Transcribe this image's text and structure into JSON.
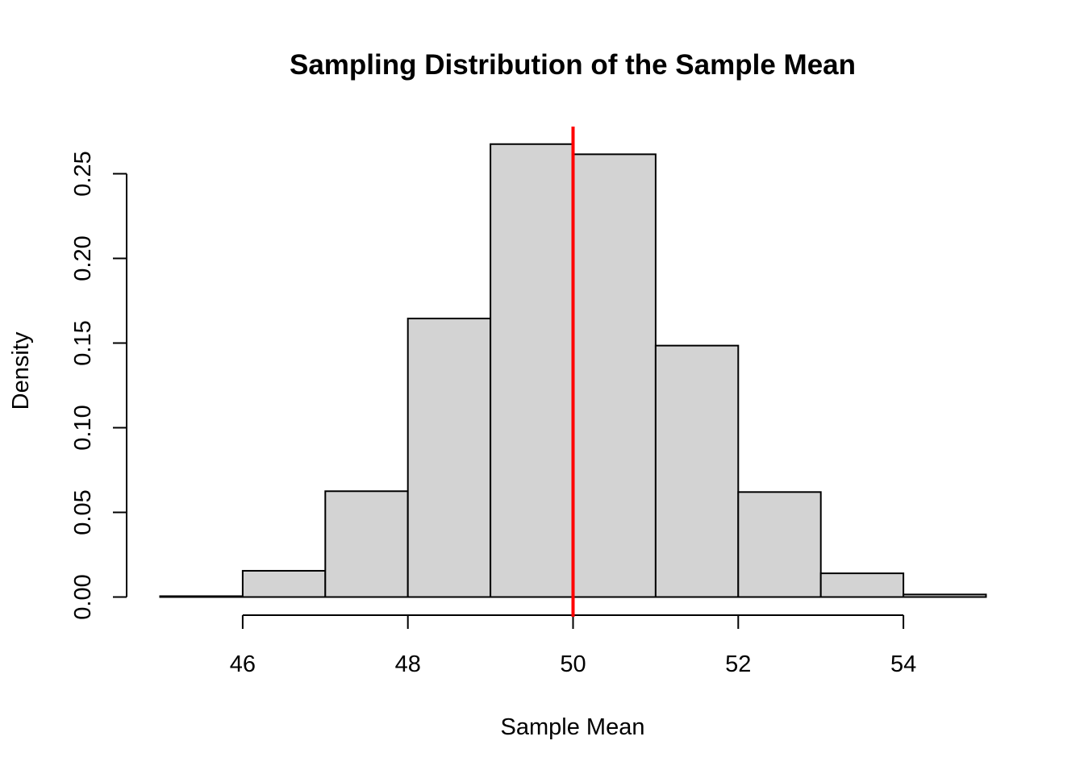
{
  "chart_data": {
    "type": "bar",
    "title": "Sampling Distribution of the Sample Mean",
    "xlabel": "Sample Mean",
    "ylabel": "Density",
    "bins": [
      {
        "x0": 45,
        "x1": 46,
        "density": 0.0005
      },
      {
        "x0": 46,
        "x1": 47,
        "density": 0.0155
      },
      {
        "x0": 47,
        "x1": 48,
        "density": 0.0625
      },
      {
        "x0": 48,
        "x1": 49,
        "density": 0.1645
      },
      {
        "x0": 49,
        "x1": 50,
        "density": 0.2675
      },
      {
        "x0": 50,
        "x1": 51,
        "density": 0.2615
      },
      {
        "x0": 51,
        "x1": 52,
        "density": 0.1485
      },
      {
        "x0": 52,
        "x1": 53,
        "density": 0.062
      },
      {
        "x0": 53,
        "x1": 54,
        "density": 0.014
      },
      {
        "x0": 54,
        "x1": 55,
        "density": 0.0015
      }
    ],
    "xlim": [
      45,
      55
    ],
    "ylim": [
      0,
      0.25
    ],
    "x_ticks": [
      "46",
      "48",
      "50",
      "52",
      "54"
    ],
    "y_ticks": [
      "0.00",
      "0.05",
      "0.10",
      "0.15",
      "0.20",
      "0.25"
    ],
    "reference_line": {
      "x": 50,
      "color": "#ff0000"
    },
    "bar_color": "#d3d3d3",
    "grid": false
  }
}
